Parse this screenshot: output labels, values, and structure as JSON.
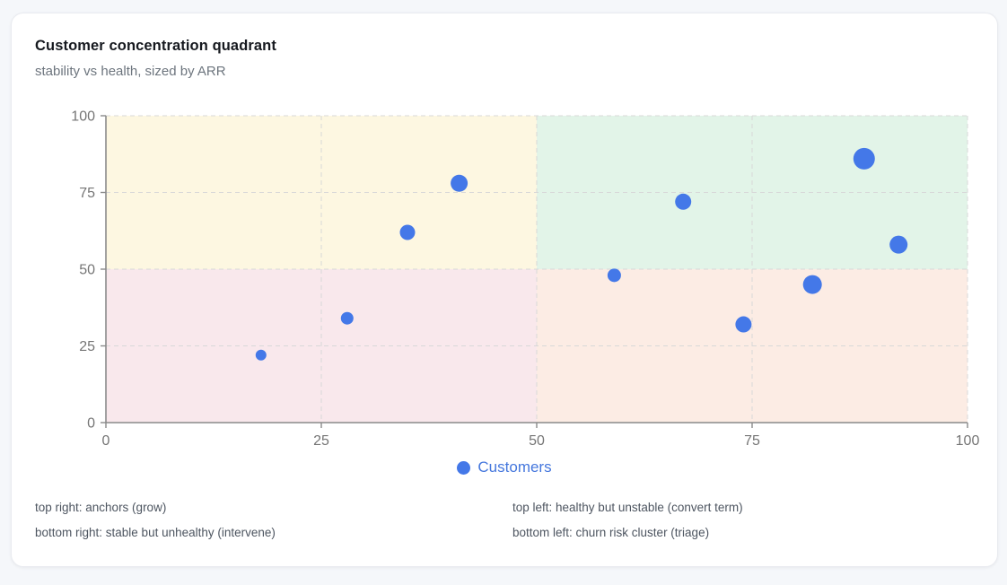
{
  "card": {
    "title": "Customer concentration quadrant",
    "subtitle": "stability vs health, sized by ARR"
  },
  "legend": {
    "label": "Customers"
  },
  "notes": {
    "col1": [
      "top right: anchors (grow)",
      "bottom right: stable but unhealthy (intervene)"
    ],
    "col2": [
      "top left: healthy but unstable (convert term)",
      "bottom left: churn risk cluster (triage)"
    ]
  },
  "colors": {
    "point": "#4478e8",
    "legend_text": "#4577dd",
    "quadrant_top_left": "#fdf7e1",
    "quadrant_top_right": "#e2f4e8",
    "quadrant_bottom_left": "#f9e8ec",
    "quadrant_bottom_right": "#fcece4",
    "grid": "#d8d8d8",
    "axis": "#8a8a8a",
    "tick_label": "#757575"
  },
  "chart_data": {
    "type": "scatter",
    "title": "Customer concentration quadrant",
    "subtitle": "stability vs health, sized by ARR",
    "xlabel": "",
    "ylabel": "",
    "xlim": [
      0,
      100
    ],
    "ylim": [
      0,
      100
    ],
    "x_ticks": [
      0,
      25,
      50,
      75,
      100
    ],
    "y_ticks": [
      0,
      25,
      50,
      75,
      100
    ],
    "grid": true,
    "legend_position": "bottom",
    "quadrant_split": {
      "x": 50,
      "y": 50
    },
    "series": [
      {
        "name": "Customers",
        "size_encodes": "ARR",
        "points": [
          {
            "x": 18,
            "y": 22,
            "r": 6
          },
          {
            "x": 28,
            "y": 34,
            "r": 7
          },
          {
            "x": 35,
            "y": 62,
            "r": 8.5
          },
          {
            "x": 41,
            "y": 78,
            "r": 9.5
          },
          {
            "x": 59,
            "y": 48,
            "r": 7.5
          },
          {
            "x": 67,
            "y": 72,
            "r": 9
          },
          {
            "x": 74,
            "y": 32,
            "r": 9
          },
          {
            "x": 82,
            "y": 45,
            "r": 10.5
          },
          {
            "x": 88,
            "y": 86,
            "r": 12
          },
          {
            "x": 92,
            "y": 58,
            "r": 10
          }
        ]
      }
    ]
  }
}
